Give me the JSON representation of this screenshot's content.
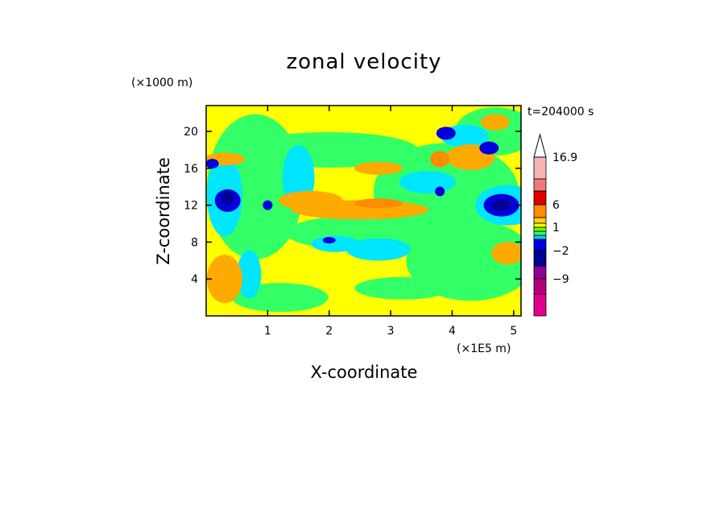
{
  "chart_data": {
    "type": "heatmap",
    "title": "zonal velocity",
    "xlabel": "X-coordinate",
    "ylabel": "Z-coordinate",
    "x_unit": "(×1E5 m)",
    "z_unit": "(×1000 m)",
    "time_label": "t=204000 s",
    "xlim": [
      0,
      5.12
    ],
    "ylim": [
      0,
      22.8
    ],
    "x_ticks": [
      1,
      2,
      3,
      4,
      5
    ],
    "y_ticks": [
      4,
      8,
      12,
      16,
      20
    ],
    "colorbar": {
      "levels": [
        -16,
        -12.5,
        -9,
        -5.5,
        -2,
        -0.5,
        0,
        0.5,
        1,
        2,
        3.5,
        6,
        9.6,
        13.3,
        16.9
      ],
      "colors": [
        "#e0008c",
        "#b40078",
        "#8c0096",
        "#000096",
        "#0000dc",
        "#00c8ff",
        "#33ff66",
        "#66ff00",
        "#ffff00",
        "#ffd200",
        "#ff8c00",
        "#dc0000",
        "#f07878",
        "#f5b4b4"
      ],
      "labels": [
        {
          "value": 16.9,
          "text": "16.9"
        },
        {
          "value": 6,
          "text": "6"
        },
        {
          "value": 1,
          "text": "1"
        },
        {
          "value": -2,
          "text": "−2"
        },
        {
          "value": -9,
          "text": "−9"
        }
      ],
      "extend": "max"
    }
  }
}
